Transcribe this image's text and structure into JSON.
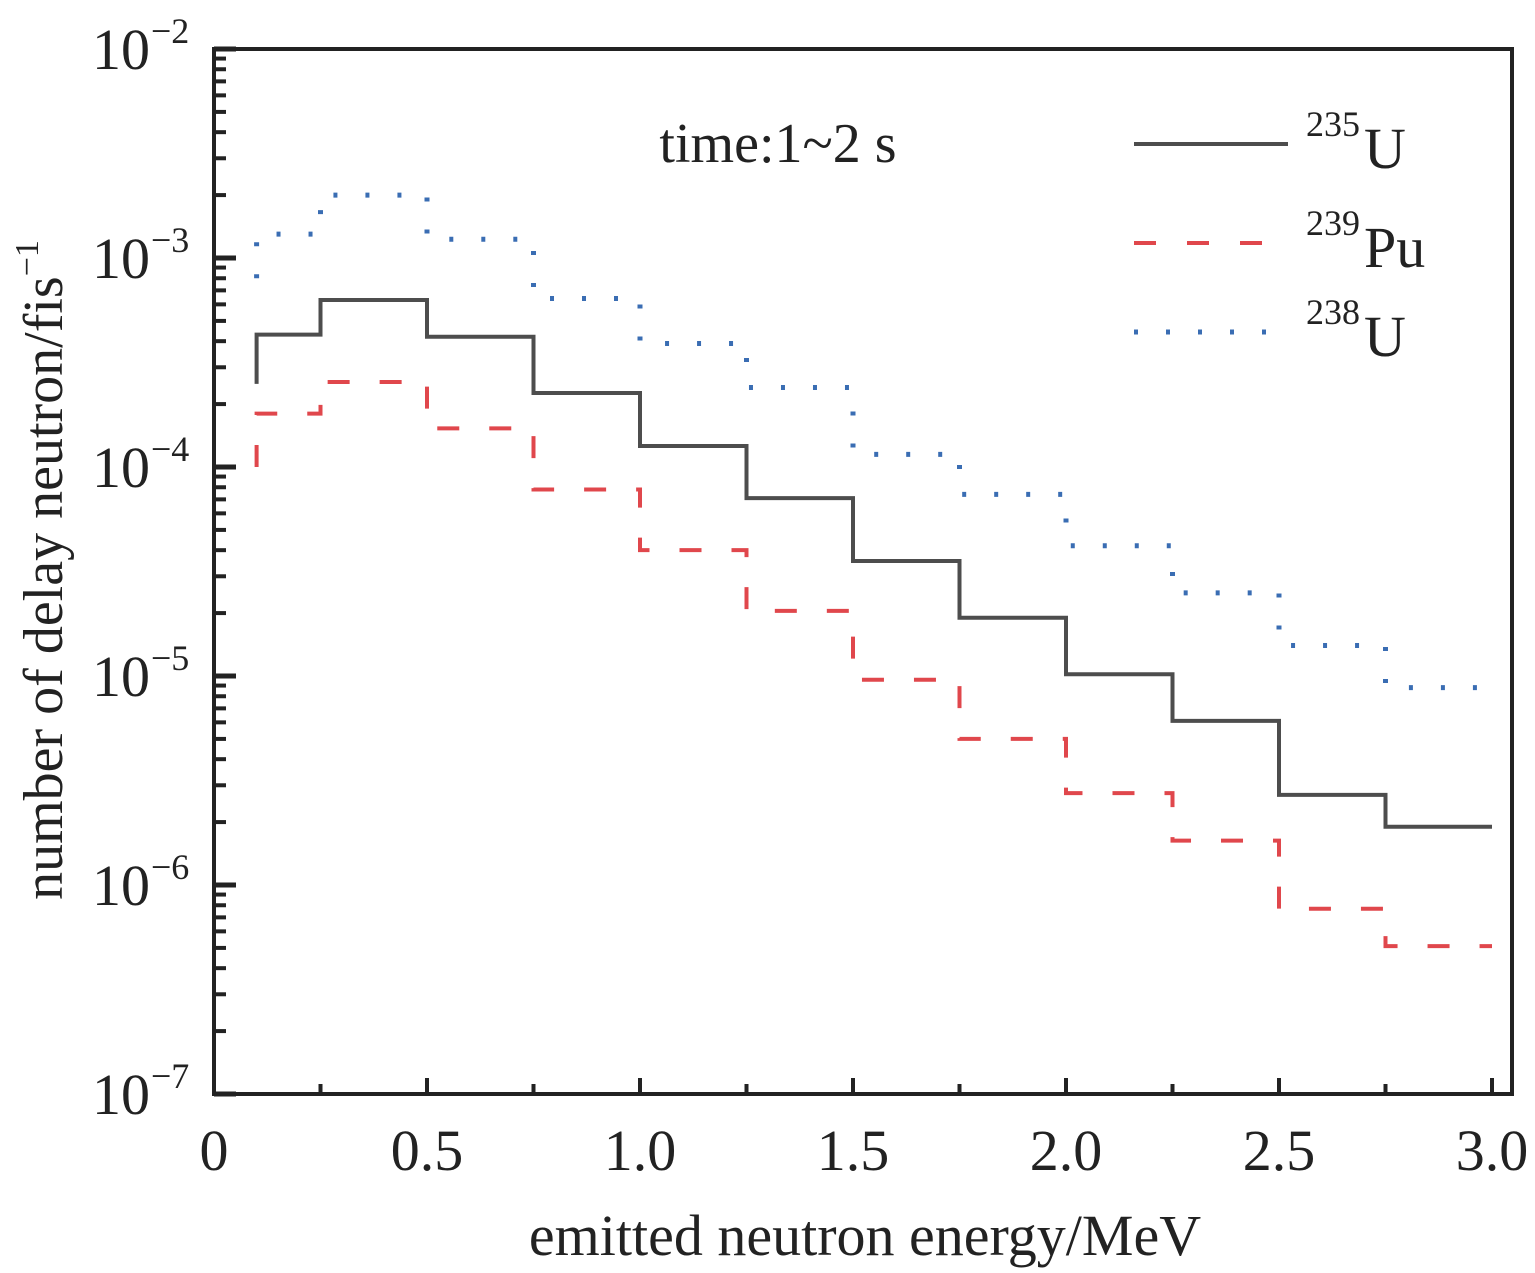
{
  "chart_data": {
    "type": "line",
    "subtype": "step-histogram",
    "title": "",
    "annotation": "time:1~2 s",
    "xlabel": "emitted neutron energy/MeV",
    "ylabel": "number of delay neutron/fis",
    "ylabel_sup": "−1",
    "xlim": [
      0,
      3.0
    ],
    "ylim": [
      1e-07,
      0.01
    ],
    "yscale": "log",
    "x_ticks": [
      "0",
      "0.5",
      "1.0",
      "1.5",
      "2.0",
      "2.5",
      "3.0"
    ],
    "y_ticks": [
      {
        "base": "10",
        "exp": "−7"
      },
      {
        "base": "10",
        "exp": "−6"
      },
      {
        "base": "10",
        "exp": "−5"
      },
      {
        "base": "10",
        "exp": "−4"
      },
      {
        "base": "10",
        "exp": "−3"
      },
      {
        "base": "10",
        "exp": "−2"
      }
    ],
    "legend_position": "top-right",
    "bin_edges": [
      0.1,
      0.25,
      0.5,
      0.75,
      1.0,
      1.25,
      1.5,
      1.75,
      2.0,
      2.25,
      2.5,
      2.75,
      3.0
    ],
    "series": [
      {
        "name": "U",
        "mass": "235",
        "color": "#4d4d4d",
        "style": "solid",
        "start": 0.00025,
        "values": [
          0.00043,
          0.00063,
          0.00042,
          0.000226,
          0.000126,
          7.1e-05,
          3.55e-05,
          1.9e-05,
          1.02e-05,
          6.1e-06,
          2.7e-06,
          1.9e-06
        ]
      },
      {
        "name": "Pu",
        "mass": "239",
        "color": "#e0474c",
        "style": "dashed",
        "start": 0.0001,
        "values": [
          0.00018,
          0.000255,
          0.000153,
          7.8e-05,
          4e-05,
          2.05e-05,
          9.6e-06,
          5e-06,
          2.75e-06,
          1.63e-06,
          7.7e-07,
          5.1e-07
        ]
      },
      {
        "name": "U",
        "mass": "238",
        "color": "#3a6db3",
        "style": "dotted",
        "start": 0.0008,
        "values": [
          0.0013,
          0.002,
          0.00123,
          0.00064,
          0.00039,
          0.00024,
          0.000115,
          7.4e-05,
          4.2e-05,
          2.5e-05,
          1.4e-05,
          8.8e-06
        ]
      }
    ]
  }
}
